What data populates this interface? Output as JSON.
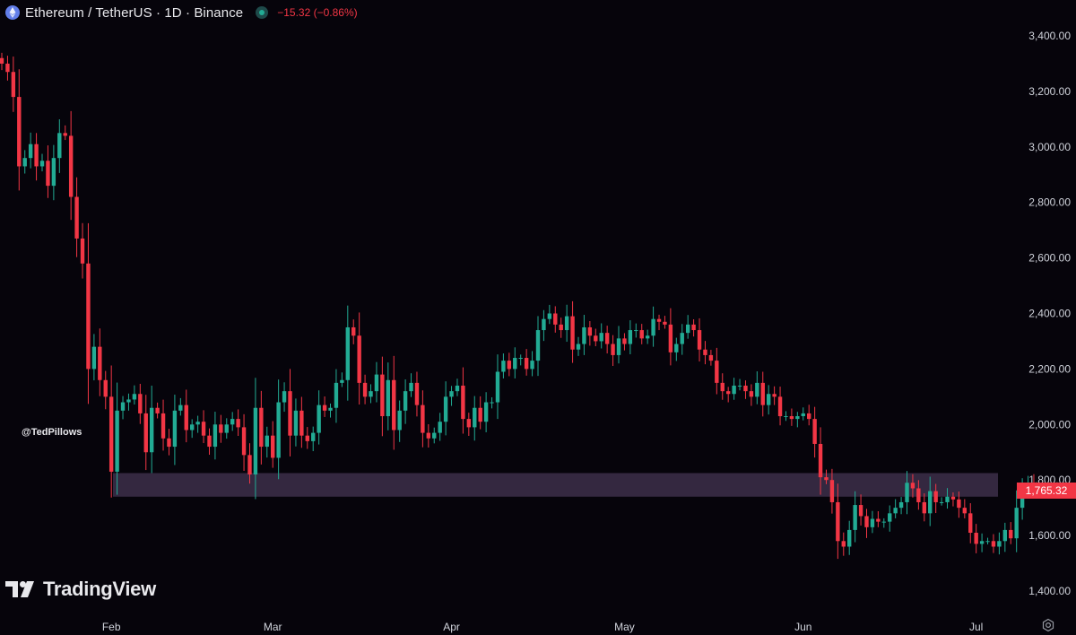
{
  "header": {
    "symbol_title": "Ethereum / TetherUS · 1D · Binance",
    "change_text": "−15.32 (−0.86%)",
    "symbol_icon": "ethereum-logo-icon",
    "status_icon": "market-status-dot-icon"
  },
  "author_label": "@TedPillows",
  "watermark": {
    "text": "TradingView",
    "icon": "tradingview-logo-icon"
  },
  "last_price_label": "1,765.32",
  "settings_icon": "gear-icon",
  "colors": {
    "background": "#06040b",
    "up": "#22ab94",
    "down": "#f23645",
    "zone": "#3d2f4a",
    "axis_text": "#d1d4dc"
  },
  "chart_data": {
    "type": "candlestick",
    "title": "Ethereum / TetherUS · 1D · Binance",
    "ylim": [
      1400,
      3500
    ],
    "y_ticks": [
      "3,400.00",
      "3,200.00",
      "3,000.00",
      "2,800.00",
      "2,600.00",
      "2,400.00",
      "2,200.00",
      "2,000.00",
      "1,800.00",
      "1,600.00",
      "1,400.00"
    ],
    "y_tick_values": [
      3400,
      3200,
      3000,
      2800,
      2600,
      2400,
      2200,
      2000,
      1800,
      1600,
      1400
    ],
    "x_ticks": [
      "Feb",
      "Mar",
      "Apr",
      "May",
      "Jun",
      "Jul"
    ],
    "x_tick_dates": [
      "2025-02-01",
      "2025-03-01",
      "2025-04-01",
      "2025-05-01",
      "2025-06-01",
      "2025-07-01"
    ],
    "first_date": "2025-01-13",
    "support_zone": {
      "low": 1740,
      "high": 1825
    },
    "last_price": 1765.32,
    "closes": [
      3300,
      3270,
      3180,
      2930,
      2960,
      3010,
      2930,
      2950,
      2860,
      2960,
      3050,
      3040,
      2820,
      2670,
      2580,
      2200,
      2280,
      2160,
      2100,
      1830,
      2050,
      2080,
      2090,
      2110,
      2040,
      1900,
      2060,
      2040,
      1950,
      1920,
      2050,
      2070,
      1980,
      2000,
      2010,
      1960,
      1920,
      2000,
      1970,
      2000,
      2020,
      1990,
      1890,
      1820,
      2060,
      1920,
      1960,
      1880,
      2080,
      2120,
      1960,
      2050,
      1960,
      1940,
      1970,
      2070,
      2050,
      2060,
      2150,
      2160,
      2350,
      2320,
      2150,
      2100,
      2120,
      2180,
      2030,
      2160,
      1980,
      2050,
      2120,
      2150,
      2070,
      1970,
      1950,
      1970,
      2010,
      2100,
      2120,
      2140,
      2020,
      1990,
      2060,
      2010,
      2080,
      2080,
      2190,
      2230,
      2200,
      2240,
      2240,
      2200,
      2230,
      2340,
      2380,
      2400,
      2360,
      2340,
      2390,
      2270,
      2290,
      2350,
      2320,
      2300,
      2330,
      2290,
      2250,
      2310,
      2290,
      2340,
      2340,
      2310,
      2320,
      2380,
      2370,
      2360,
      2260,
      2290,
      2330,
      2360,
      2340,
      2270,
      2250,
      2230,
      2150,
      2120,
      2110,
      2140,
      2140,
      2120,
      2100,
      2150,
      2070,
      2110,
      2100,
      2030,
      2030,
      2020,
      2030,
      2040,
      2020,
      1930,
      1810,
      1800,
      1720,
      1580,
      1560,
      1620,
      1710,
      1670,
      1630,
      1660,
      1650,
      1650,
      1680,
      1700,
      1720,
      1790,
      1770,
      1720,
      1680,
      1760,
      1720,
      1720,
      1740,
      1730,
      1700,
      1680,
      1610,
      1570,
      1580,
      1580,
      1560,
      1580,
      1620,
      1590,
      1700,
      1770,
      1790,
      1770,
      1765.32
    ]
  }
}
